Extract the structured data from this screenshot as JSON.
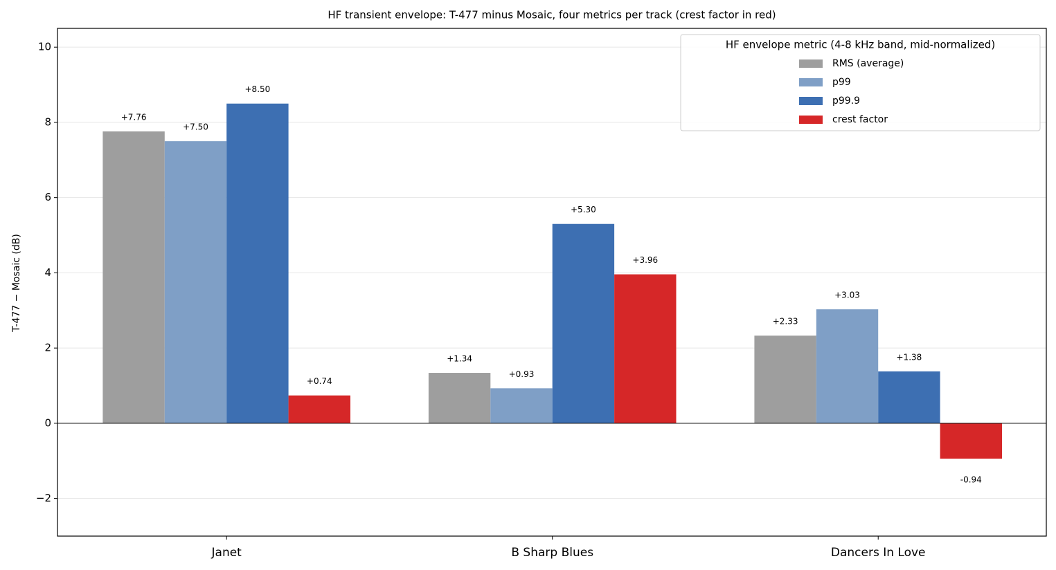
{
  "chart_data": {
    "type": "bar",
    "title": "HF transient envelope: T-477 minus Mosaic, four metrics per track (crest factor in red)",
    "y_label": "T-477 − Mosaic (dB)",
    "categories": [
      "Janet",
      "B Sharp Blues",
      "Dancers In Love"
    ],
    "series": [
      {
        "name": "RMS (average)",
        "color": "#9e9e9e",
        "values": [
          7.76,
          1.34,
          2.33
        ],
        "value_labels": [
          "+7.76",
          "+1.34",
          "+2.33"
        ]
      },
      {
        "name": "p99",
        "color": "#7f9fc6",
        "values": [
          7.5,
          0.93,
          3.03
        ],
        "value_labels": [
          "+7.50",
          "+0.93",
          "+3.03"
        ]
      },
      {
        "name": "p99.9",
        "color": "#3d6fb2",
        "values": [
          8.5,
          5.3,
          1.38
        ],
        "value_labels": [
          "+8.50",
          "+5.30",
          "+1.38"
        ]
      },
      {
        "name": "crest factor",
        "color": "#d62728",
        "values": [
          0.74,
          3.96,
          -0.94
        ],
        "value_labels": [
          "+0.74",
          "+3.96",
          "-0.94"
        ]
      }
    ],
    "ylim": [
      -3,
      10.5
    ],
    "yticks": [
      {
        "value": -2,
        "label": "−2"
      },
      0,
      2,
      4,
      6,
      8,
      10
    ],
    "grid": true,
    "legend": {
      "title": "HF envelope metric (4-8 kHz band, mid-normalized)",
      "loc": "upper right"
    }
  }
}
